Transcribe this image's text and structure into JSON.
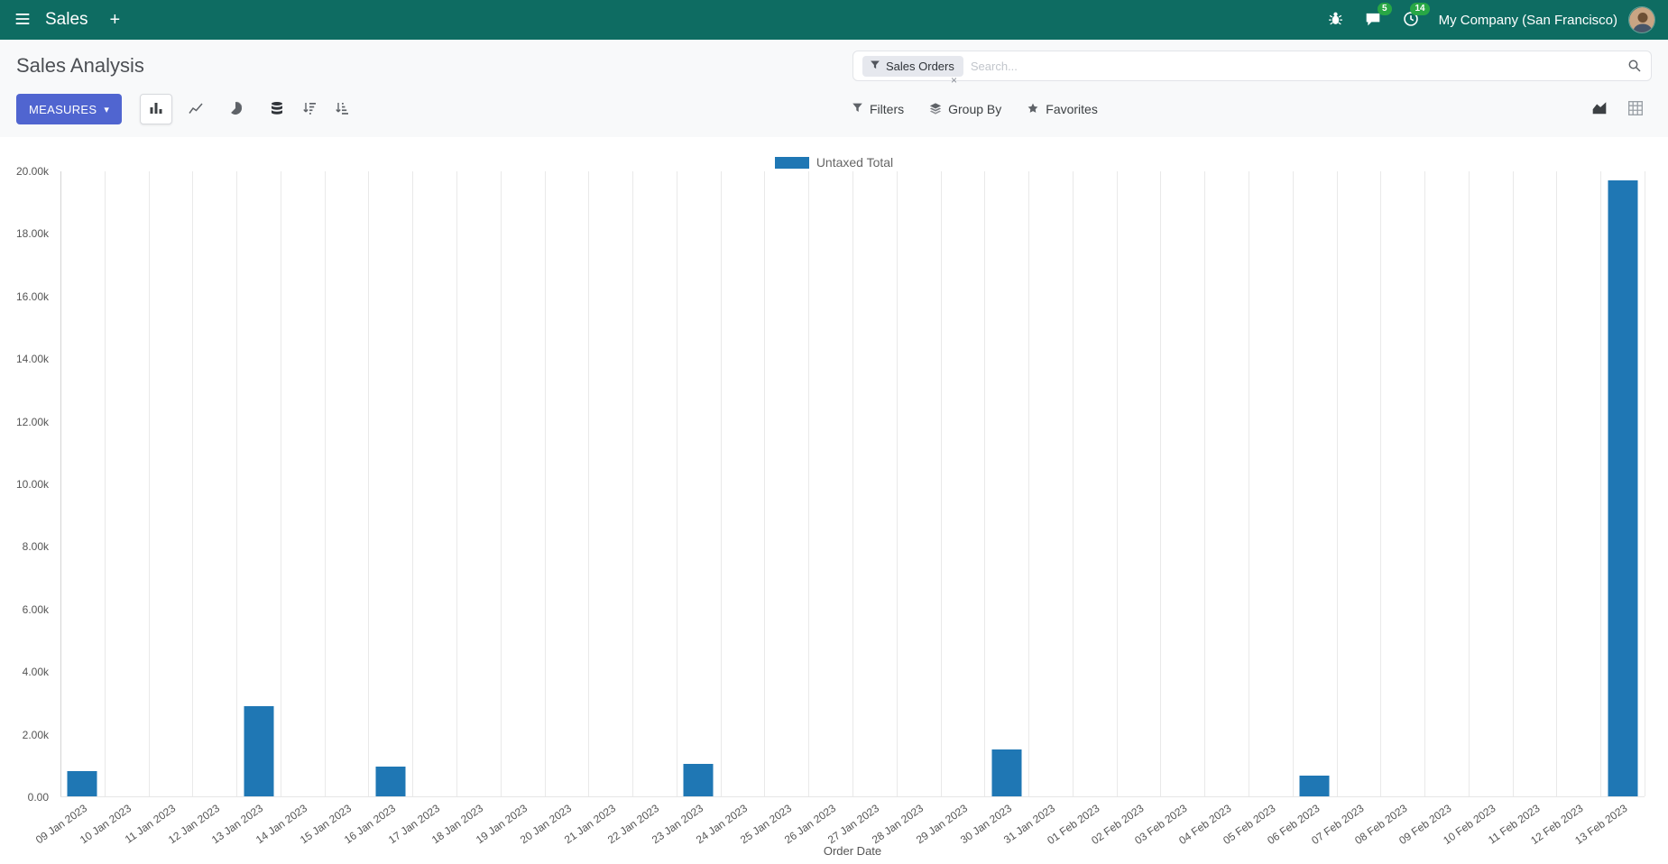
{
  "colors": {
    "navbar-bg": "#0e6c62",
    "primary": "#5065d0",
    "badge": "#28a745",
    "bar": "#1f77b4",
    "facet-bg": "#e6e8ee"
  },
  "icons": {
    "caret-down": "▾",
    "close": "×"
  },
  "navbar": {
    "app_name": "Sales",
    "plus_label": "+",
    "messages_badge": "5",
    "activities_badge": "14",
    "company": "My Company (San Francisco)"
  },
  "control_panel": {
    "title": "Sales Analysis",
    "measures_label": "MEASURES",
    "filters_label": "Filters",
    "group_by_label": "Group By",
    "favorites_label": "Favorites",
    "search": {
      "facet_label": "Sales Orders",
      "placeholder": "Search..."
    }
  },
  "chart_data": {
    "type": "bar",
    "title": "",
    "xlabel": "Order Date",
    "ylabel": "",
    "ylim": [
      0,
      20000
    ],
    "grid": "vertical",
    "legend_position": "top",
    "legend": [
      {
        "label": "Untaxed Total",
        "color": "#1f77b4"
      }
    ],
    "yticks": [
      {
        "value": 0,
        "label": "0.00"
      },
      {
        "value": 2000,
        "label": "2.00k"
      },
      {
        "value": 4000,
        "label": "4.00k"
      },
      {
        "value": 6000,
        "label": "6.00k"
      },
      {
        "value": 8000,
        "label": "8.00k"
      },
      {
        "value": 10000,
        "label": "10.00k"
      },
      {
        "value": 12000,
        "label": "12.00k"
      },
      {
        "value": 14000,
        "label": "14.00k"
      },
      {
        "value": 16000,
        "label": "16.00k"
      },
      {
        "value": 18000,
        "label": "18.00k"
      },
      {
        "value": 20000,
        "label": "20.00k"
      }
    ],
    "categories": [
      "09 Jan 2023",
      "10 Jan 2023",
      "11 Jan 2023",
      "12 Jan 2023",
      "13 Jan 2023",
      "14 Jan 2023",
      "15 Jan 2023",
      "16 Jan 2023",
      "17 Jan 2023",
      "18 Jan 2023",
      "19 Jan 2023",
      "20 Jan 2023",
      "21 Jan 2023",
      "22 Jan 2023",
      "23 Jan 2023",
      "24 Jan 2023",
      "25 Jan 2023",
      "26 Jan 2023",
      "27 Jan 2023",
      "28 Jan 2023",
      "29 Jan 2023",
      "30 Jan 2023",
      "31 Jan 2023",
      "01 Feb 2023",
      "02 Feb 2023",
      "03 Feb 2023",
      "04 Feb 2023",
      "05 Feb 2023",
      "06 Feb 2023",
      "07 Feb 2023",
      "08 Feb 2023",
      "09 Feb 2023",
      "10 Feb 2023",
      "11 Feb 2023",
      "12 Feb 2023",
      "13 Feb 2023"
    ],
    "series": [
      {
        "name": "Untaxed Total",
        "color": "#1f77b4",
        "values": [
          800,
          0,
          0,
          0,
          2900,
          0,
          0,
          950,
          0,
          0,
          0,
          0,
          0,
          0,
          1050,
          0,
          0,
          0,
          0,
          0,
          0,
          1500,
          0,
          0,
          0,
          0,
          0,
          0,
          650,
          0,
          0,
          0,
          0,
          0,
          0,
          19700
        ]
      }
    ]
  }
}
